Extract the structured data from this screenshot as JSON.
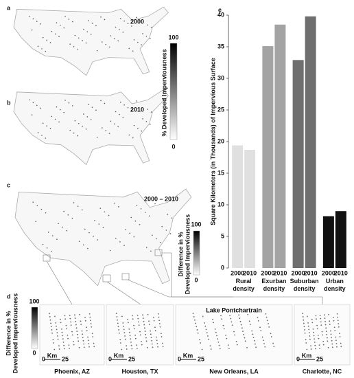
{
  "chart_data": {
    "type": "bar",
    "panel_label": "e",
    "y_label": "Square Kilometers (in Thousands) of Impervious Surface",
    "categories": [
      "Rural density",
      "Exurban density",
      "Suburban density",
      "Urban density"
    ],
    "category_colors": [
      "#e0e0e0",
      "#a3a3a3",
      "#6f6f6f",
      "#111111"
    ],
    "series": [
      {
        "name": "2000",
        "values": [
          19.4,
          35.1,
          32.9,
          8.2
        ]
      },
      {
        "name": "2010",
        "values": [
          18.7,
          38.5,
          39.8,
          9.0
        ]
      }
    ],
    "ylim": [
      0,
      40
    ],
    "yticks": [
      0,
      5,
      10,
      15,
      20,
      25,
      30,
      35,
      40
    ],
    "grid": false
  },
  "maps": [
    {
      "label": "a",
      "period": "2000"
    },
    {
      "label": "b",
      "period": "2010"
    },
    {
      "label": "c",
      "period": "2000 – 2010"
    }
  ],
  "colorbar_top": {
    "max": "100",
    "min": "0",
    "title": "% Developed Imperviousness"
  },
  "colorbar_diff": {
    "max": "100",
    "min": "0",
    "title": [
      "Difference in %",
      "Developed Imperviousness"
    ]
  },
  "insets": {
    "label": "d",
    "cities": [
      {
        "name": "Phoenix, AZ",
        "scale": [
          "0",
          "Km",
          "25"
        ]
      },
      {
        "name": "Houston, TX",
        "scale": [
          "0",
          "Km",
          "25"
        ]
      },
      {
        "name": "New Orleans, LA",
        "scale": [
          "0",
          "Km",
          "25"
        ],
        "note": "Lake Pontchartrain"
      },
      {
        "name": "Charlotte, NC",
        "scale": [
          "0",
          "Km",
          "25"
        ]
      }
    ]
  }
}
